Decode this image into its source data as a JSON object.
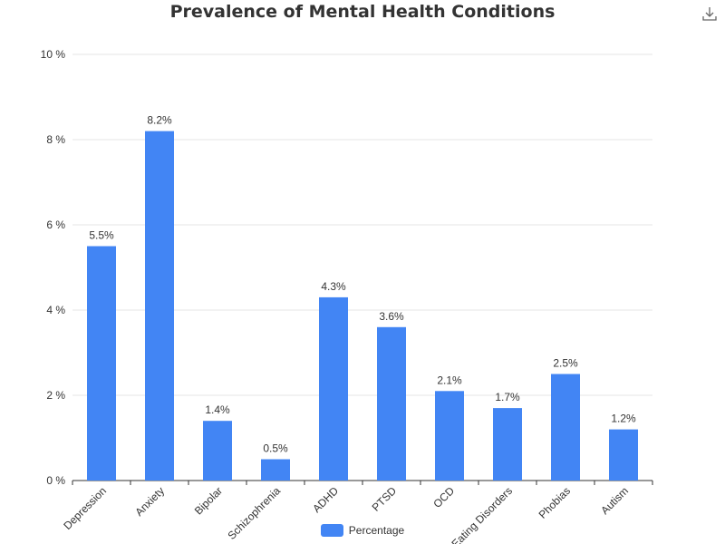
{
  "toolbar": {
    "download_icon": "download-icon"
  },
  "legend": {
    "label": "Percentage"
  },
  "colors": {
    "bar": "#4285f4",
    "grid": "#e6e6e6",
    "axis": "#333333",
    "text": "#333333"
  },
  "chart_data": {
    "type": "bar",
    "title": "Prevalence of Mental Health Conditions",
    "categories": [
      "Depression",
      "Anxiety",
      "Bipolar",
      "Schizophrenia",
      "ADHD",
      "PTSD",
      "OCD",
      "Eating Disorders",
      "Phobias",
      "Autism"
    ],
    "series": [
      {
        "name": "Percentage",
        "values": [
          5.5,
          8.2,
          1.4,
          0.5,
          4.3,
          3.6,
          2.1,
          1.7,
          2.5,
          1.2
        ]
      }
    ],
    "data_labels": [
      "5.5%",
      "8.2%",
      "1.4%",
      "0.5%",
      "4.3%",
      "3.6%",
      "2.1%",
      "1.7%",
      "2.5%",
      "1.2%"
    ],
    "yticks": [
      0,
      2,
      4,
      6,
      8,
      10
    ],
    "ytick_labels": [
      "0 %",
      "2 %",
      "4 %",
      "6 %",
      "8 %",
      "10 %"
    ],
    "ylim": [
      0,
      10
    ],
    "xlabel": "",
    "ylabel": "",
    "grid": true,
    "legend_position": "bottom"
  }
}
